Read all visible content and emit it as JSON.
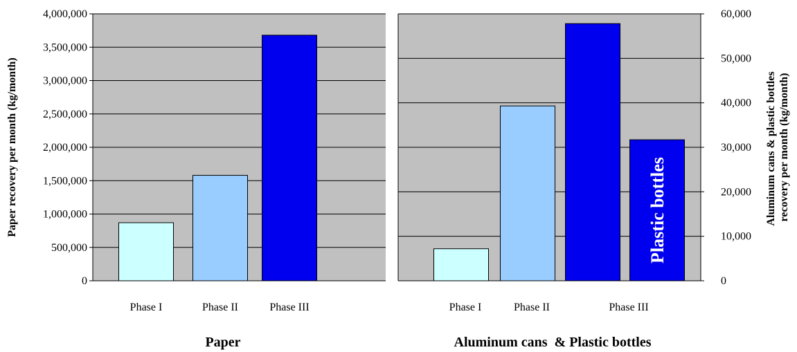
{
  "chart_data": [
    {
      "type": "bar",
      "title": "Paper",
      "ylabel": "Paper recovery per month (kg/month)",
      "ylim": [
        0,
        4000000
      ],
      "yticks": [
        "0",
        "500,000",
        "1,000,000",
        "1,500,000",
        "2,000,000",
        "2,500,000",
        "3,000,000",
        "3,500,000",
        "4,000,000"
      ],
      "grid": true,
      "categories": [
        "Phase I",
        "Phase II",
        "Phase III"
      ],
      "values": [
        870000,
        1580000,
        3680000
      ],
      "colors": [
        "#ccffff",
        "#99ccff",
        "#0000ee"
      ]
    },
    {
      "type": "bar",
      "title": "Aluminum cans  & Plastic bottles",
      "ylabel": "Aluminum cans & plastic bottles recovery per month (kg/month)",
      "ylim": [
        0,
        60000
      ],
      "yticks": [
        "0",
        "10,000",
        "20,000",
        "30,000",
        "40,000",
        "50,000",
        "60,000"
      ],
      "grid": true,
      "categories": [
        "Phase I",
        "Phase II",
        "Phase III"
      ],
      "bars": [
        {
          "category": "Phase I",
          "value": 7200,
          "color": "#ccffff",
          "label": ""
        },
        {
          "category": "Phase II",
          "value": 39300,
          "color": "#99ccff",
          "label": ""
        },
        {
          "category": "Phase III",
          "value": 57800,
          "color": "#0000ee",
          "label": ""
        },
        {
          "category": "Phase III",
          "value": 31700,
          "color": "#0000ee",
          "label": "Plastic bottles"
        }
      ]
    }
  ]
}
